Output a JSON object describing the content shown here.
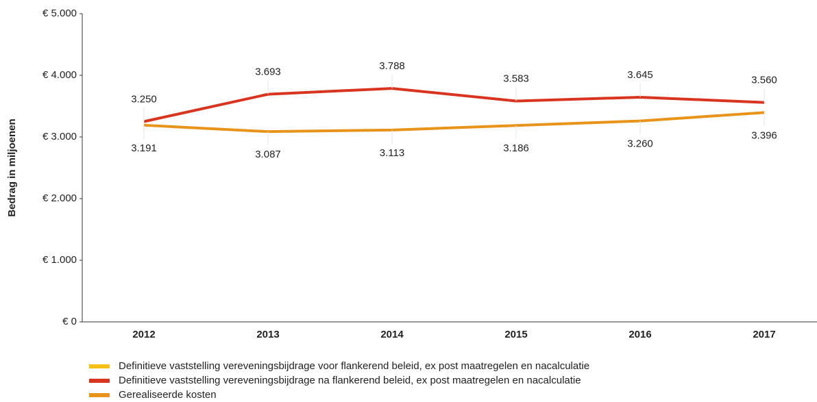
{
  "chart_data": {
    "type": "line",
    "y_axis_label": "Bedrag in miljoenen",
    "categories": [
      "2012",
      "2013",
      "2014",
      "2015",
      "2016",
      "2017"
    ],
    "series": [
      {
        "name": "Definitieve vaststelling vereveningsbijdrage voor flankerend beleid, ex post maatregelen en nacalculatie",
        "color": "#f5c013",
        "values": [
          null,
          null,
          null,
          null,
          null,
          null
        ]
      },
      {
        "name": "Definitieve vaststelling vereveningsbijdrage na flankerend beleid, ex post maatregelen en nacalculatie",
        "color": "#d9341f",
        "values": [
          3250,
          3693,
          3788,
          3583,
          3645,
          3560
        ],
        "value_labels": [
          "3.250",
          "3.693",
          "3.788",
          "3.583",
          "3.645",
          "3.560"
        ],
        "label_position": "above"
      },
      {
        "name": "Gerealiseerde kosten",
        "color": "#e8941a",
        "values": [
          3191,
          3087,
          3113,
          3186,
          3260,
          3396
        ],
        "value_labels": [
          "3.191",
          "3.087",
          "3.113",
          "3.186",
          "3.260",
          "3.396"
        ],
        "label_position": "below"
      }
    ],
    "ylim": [
      0,
      5000
    ],
    "yticks": [
      {
        "value": 0,
        "label": "€ 0"
      },
      {
        "value": 1000,
        "label": "€ 1.000"
      },
      {
        "value": 2000,
        "label": "€ 2.000"
      },
      {
        "value": 3000,
        "label": "€ 3.000"
      },
      {
        "value": 4000,
        "label": "€ 4.000"
      },
      {
        "value": 5000,
        "label": "€ 5.000"
      }
    ],
    "grid": false
  }
}
